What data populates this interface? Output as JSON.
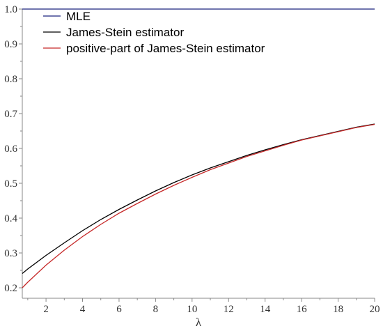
{
  "chart_data": {
    "type": "line",
    "title": "",
    "xlabel": "λ",
    "ylabel": "",
    "xlim": [
      0.7,
      20
    ],
    "ylim": [
      0.17,
      1.0
    ],
    "grid": false,
    "legend_position": "top-left",
    "x_ticks": [
      2,
      4,
      6,
      8,
      10,
      12,
      14,
      16,
      18,
      20
    ],
    "y_ticks": [
      0.2,
      0.3,
      0.4,
      0.5,
      0.6,
      0.7,
      0.8,
      0.9,
      1.0
    ],
    "x_tick_labels": [
      "2",
      "4",
      "6",
      "8",
      "10",
      "12",
      "14",
      "16",
      "18",
      "20"
    ],
    "y_tick_labels": [
      "0.2",
      "0.3",
      "0.4",
      "0.5",
      "0.6",
      "0.7",
      "0.8",
      "0.9",
      "1.0"
    ],
    "series": [
      {
        "name": "MLE",
        "color": "#1a237e",
        "x": [
          0.7,
          2,
          4,
          6,
          8,
          10,
          12,
          14,
          16,
          18,
          20
        ],
        "y": [
          1.0,
          1.0,
          1.0,
          1.0,
          1.0,
          1.0,
          1.0,
          1.0,
          1.0,
          1.0,
          1.0
        ]
      },
      {
        "name": "James-Stein estimator",
        "color": "#000000",
        "x": [
          0.7,
          1,
          2,
          3,
          4,
          5,
          6,
          7,
          8,
          9,
          10,
          11,
          12,
          13,
          14,
          15,
          16,
          17,
          18,
          19,
          20
        ],
        "y": [
          0.241,
          0.254,
          0.293,
          0.329,
          0.364,
          0.396,
          0.425,
          0.452,
          0.478,
          0.502,
          0.524,
          0.544,
          0.562,
          0.58,
          0.596,
          0.611,
          0.625,
          0.637,
          0.649,
          0.661,
          0.67
        ]
      },
      {
        "name": "positive-part of James-Stein estimator",
        "color": "#c62828",
        "x": [
          0.7,
          1,
          2,
          3,
          4,
          5,
          6,
          7,
          8,
          9,
          10,
          11,
          12,
          13,
          14,
          15,
          16,
          17,
          18,
          19,
          20
        ],
        "y": [
          0.2,
          0.216,
          0.265,
          0.308,
          0.347,
          0.382,
          0.414,
          0.442,
          0.469,
          0.494,
          0.517,
          0.539,
          0.558,
          0.577,
          0.593,
          0.609,
          0.624,
          0.636,
          0.648,
          0.66,
          0.669
        ]
      }
    ]
  }
}
